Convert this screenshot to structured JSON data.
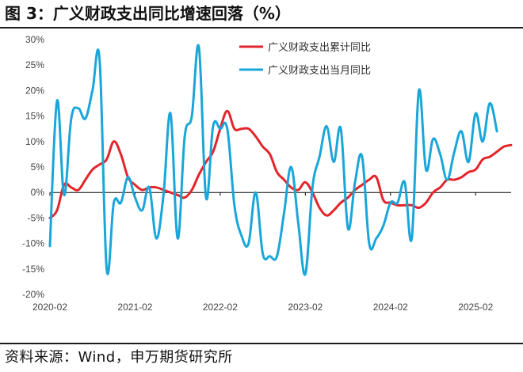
{
  "title": "图 3：广义财政支出同比增速回落（%）",
  "source": "资料来源：Wind，申万期货研究所",
  "colors": {
    "series1": "#e3252b",
    "series2": "#1aa6d9",
    "axis": "#000000",
    "text": "#444444"
  },
  "chart_data": {
    "type": "line",
    "title": "广义财政支出同比增速回落（%）",
    "xlabel": "",
    "ylabel": "",
    "ylim": [
      -20,
      30
    ],
    "yticks": [
      -20,
      -15,
      -10,
      -5,
      0,
      5,
      10,
      15,
      20,
      25,
      30
    ],
    "ytick_labels": [
      "-20%",
      "-15%",
      "-10%",
      "-5%",
      "0%",
      "5%",
      "10%",
      "15%",
      "20%",
      "25%",
      "30%"
    ],
    "xticks": [
      {
        "i": 0,
        "label": "2020-02"
      },
      {
        "i": 12,
        "label": "2021-02"
      },
      {
        "i": 24,
        "label": "2022-02"
      },
      {
        "i": 36,
        "label": "2023-02"
      },
      {
        "i": 48,
        "label": "2024-02"
      },
      {
        "i": 60,
        "label": "2025-02"
      }
    ],
    "legend_position": "top-right",
    "series": [
      {
        "name": "广义财政支出累计同比",
        "color": "#e3252b",
        "values": [
          -5,
          -3.5,
          1.5,
          1,
          0.5,
          2.5,
          4.5,
          5.5,
          6.5,
          10,
          7.5,
          3,
          1.5,
          0.5,
          1,
          1,
          0.5,
          0,
          -0.5,
          -1,
          0.5,
          3.5,
          6,
          8,
          12.5,
          16,
          12.5,
          12.5,
          12.5,
          11,
          9,
          7.5,
          4,
          2.5,
          1,
          0.5,
          2,
          0,
          -3,
          -4.5,
          -3.5,
          -2,
          -1,
          0.5,
          1.5,
          2.5,
          3,
          -1.5,
          -2,
          -2.5,
          -2.5,
          -2.5,
          -3,
          -2,
          0,
          1,
          2.5,
          2.5,
          3,
          4,
          4.5,
          6.5,
          7,
          8,
          9,
          9.3
        ]
      },
      {
        "name": "广义财政支出当月同比",
        "color": "#1aa6d9",
        "values": [
          -10.5,
          18,
          -0.5,
          14.5,
          16.5,
          14.5,
          20,
          26,
          -15,
          -2,
          -2,
          3,
          -1,
          -3.5,
          1,
          -9,
          -0.5,
          15.5,
          -9,
          11,
          15,
          28.5,
          -1,
          13,
          12.5,
          12.5,
          -2.5,
          -8.5,
          -10,
          0,
          -12,
          -12.5,
          -12.5,
          -4,
          5,
          -6,
          -16,
          1,
          7,
          13,
          6,
          12.5,
          -7,
          2,
          7,
          -10,
          -9,
          -6.5,
          -2,
          -2,
          2,
          -9,
          20,
          4.5,
          10.5,
          7.5,
          2.5,
          8,
          12,
          6,
          15.5,
          10,
          17.5,
          12
        ]
      }
    ]
  }
}
